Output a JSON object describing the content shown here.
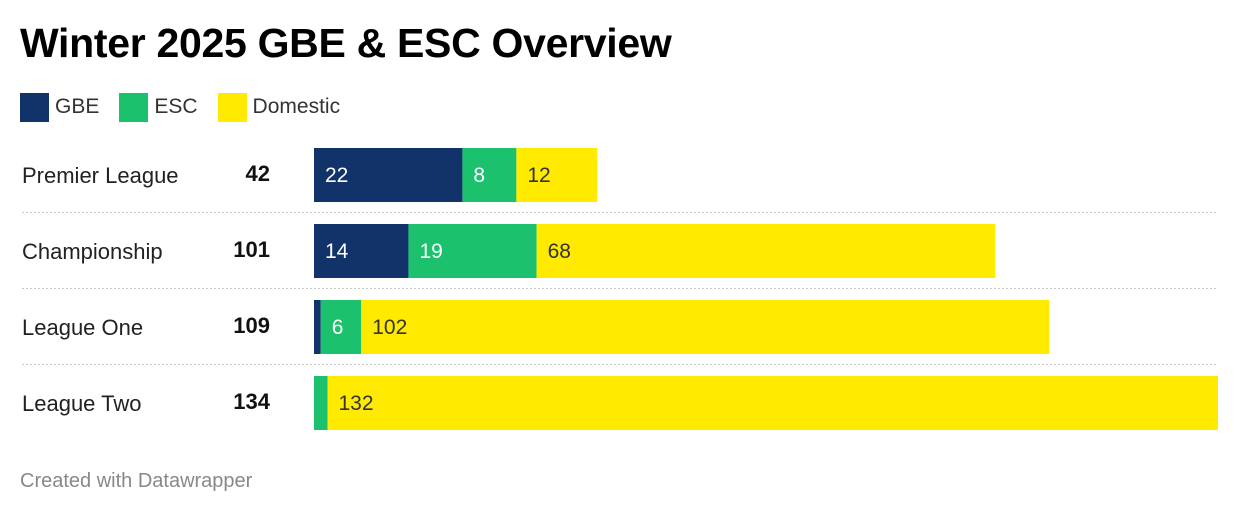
{
  "title": "Winter 2025 GBE & ESC Overview",
  "footer": "Created with Datawrapper",
  "legend": [
    {
      "name": "GBE",
      "color": "#12336a"
    },
    {
      "name": "ESC",
      "color": "#1bc16c"
    },
    {
      "name": "Domestic",
      "color": "#ffea00"
    }
  ],
  "chart_data": {
    "type": "bar",
    "orientation": "horizontal",
    "stacked": true,
    "title": "Winter 2025 GBE & ESC Overview",
    "categories": [
      "Premier League",
      "Championship",
      "League One",
      "League Two"
    ],
    "totals": [
      42,
      101,
      109,
      134
    ],
    "series": [
      {
        "name": "GBE",
        "color": "#12336a",
        "values": [
          22,
          14,
          1,
          0
        ]
      },
      {
        "name": "ESC",
        "color": "#1bc16c",
        "values": [
          8,
          19,
          6,
          2
        ]
      },
      {
        "name": "Domestic",
        "color": "#ffea00",
        "values": [
          12,
          68,
          102,
          132
        ]
      }
    ],
    "xlim": [
      0,
      134
    ],
    "gridlines": false,
    "legend_position": "top-left"
  }
}
